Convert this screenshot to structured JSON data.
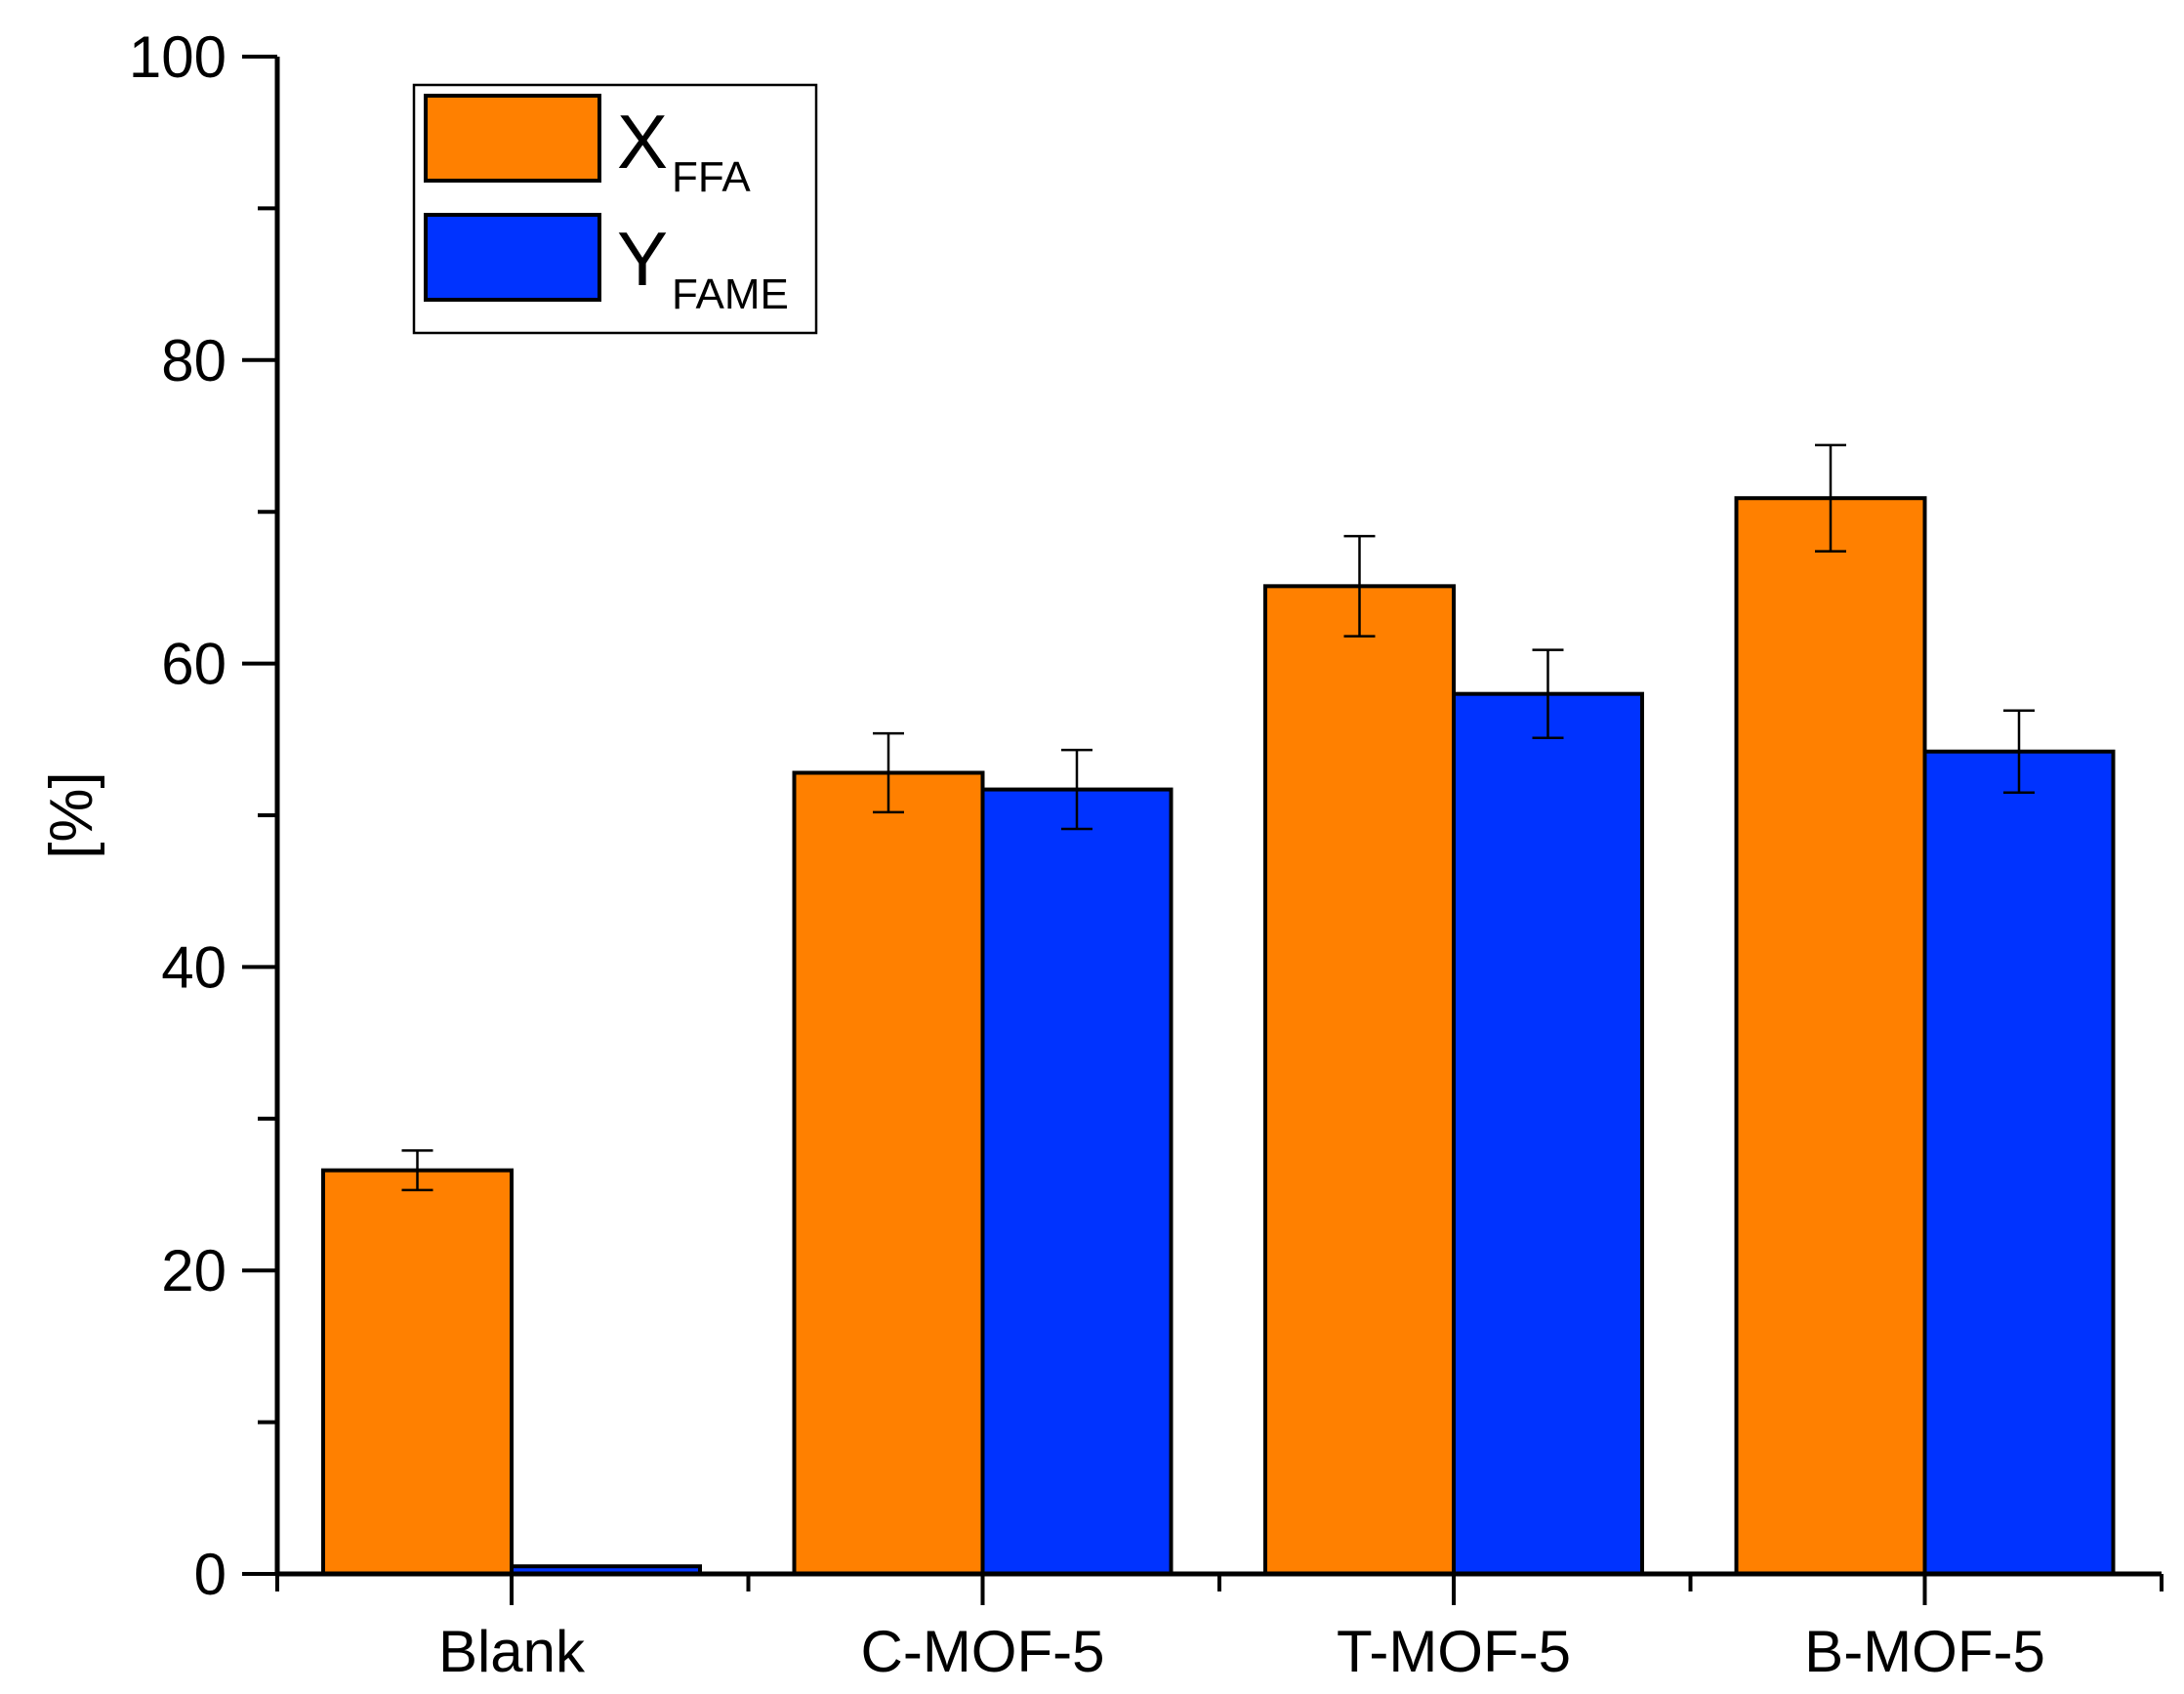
{
  "chart_data": {
    "type": "bar",
    "title": "",
    "xlabel": "",
    "ylabel": "[%]",
    "ylim": [
      0,
      100
    ],
    "yticks": [
      "0",
      "20",
      "40",
      "60",
      "80",
      "100"
    ],
    "categories": [
      "Blank",
      "C-MOF-5",
      "T-MOF-5",
      "B-MOF-5"
    ],
    "legend_position": "top-left",
    "series": [
      {
        "name": "X",
        "subscript": "FFA",
        "color": "#FF8000",
        "values": [
          26.6,
          52.8,
          65.1,
          70.9
        ],
        "errors": [
          1.3,
          2.6,
          3.3,
          3.5
        ]
      },
      {
        "name": "Y",
        "subscript": "FAME",
        "color": "#0033FF",
        "values": [
          0.5,
          51.7,
          58.0,
          54.2
        ],
        "errors": [
          0,
          2.6,
          2.9,
          2.7
        ]
      }
    ]
  }
}
